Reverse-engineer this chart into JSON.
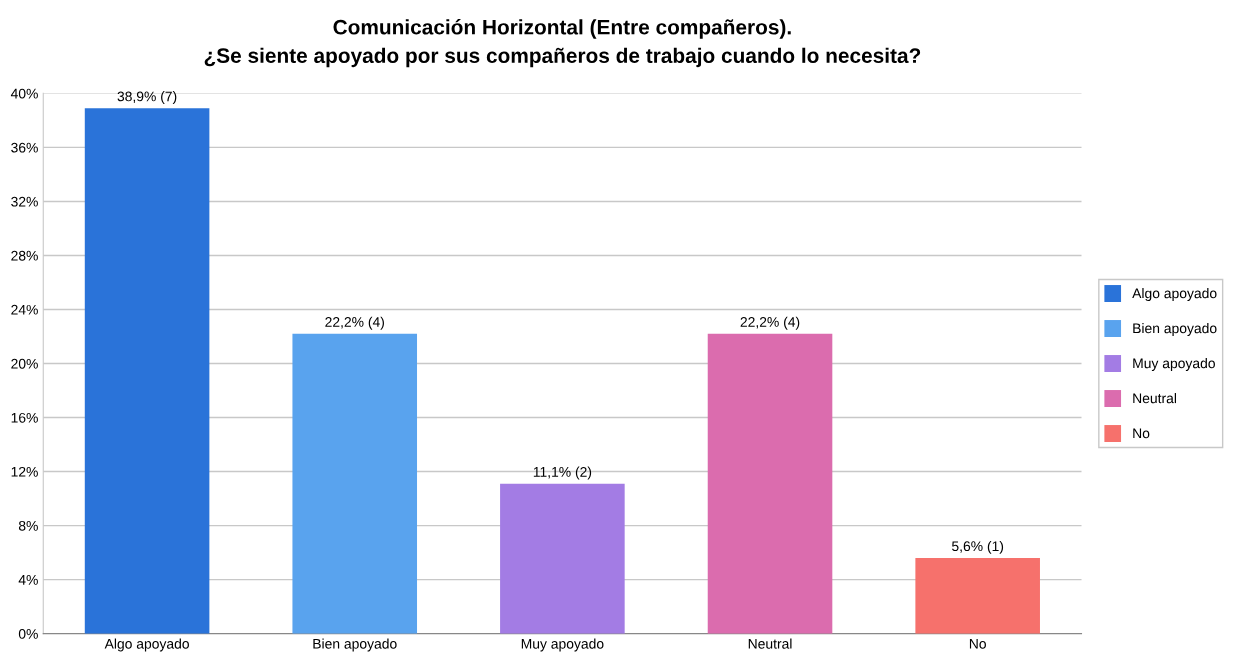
{
  "chart_data": {
    "type": "bar",
    "title": "Comunicación Horizontal (Entre compañeros).\n¿Se siente apoyado por sus compañeros de trabajo cuando lo necesita?",
    "categories": [
      "Algo apoyado",
      "Bien apoyado",
      "Muy apoyado",
      "Neutral",
      "No"
    ],
    "series": [
      {
        "name": "Algo apoyado",
        "color": "#2a73d9",
        "values": [
          38.9,
          null,
          null,
          null,
          null
        ],
        "value_labels": [
          "38,9% (7)",
          null,
          null,
          null,
          null
        ]
      },
      {
        "name": "Bien apoyado",
        "color": "#59a3ee",
        "values": [
          null,
          22.2,
          null,
          null,
          null
        ],
        "value_labels": [
          null,
          "22,2% (4)",
          null,
          null,
          null
        ]
      },
      {
        "name": "Muy apoyado",
        "color": "#a37ce4",
        "values": [
          null,
          null,
          11.1,
          null,
          null
        ],
        "value_labels": [
          null,
          null,
          "11,1% (2)",
          null,
          null
        ]
      },
      {
        "name": "Neutral",
        "color": "#db6cae",
        "values": [
          null,
          null,
          null,
          22.2,
          null
        ],
        "value_labels": [
          null,
          null,
          null,
          "22,2% (4)",
          null
        ]
      },
      {
        "name": "No",
        "color": "#f6716c",
        "values": [
          null,
          null,
          null,
          null,
          5.6
        ],
        "value_labels": [
          null,
          null,
          null,
          null,
          "5,6% (1)"
        ]
      }
    ],
    "stacked": true,
    "ylim": [
      0,
      40
    ],
    "yticks": [
      {
        "value": 0,
        "label": "0%"
      },
      {
        "value": 4,
        "label": "4%"
      },
      {
        "value": 8,
        "label": "8%"
      },
      {
        "value": 12,
        "label": "12%"
      },
      {
        "value": 16,
        "label": "16%"
      },
      {
        "value": 20,
        "label": "20%"
      },
      {
        "value": 24,
        "label": "24%"
      },
      {
        "value": 28,
        "label": "28%"
      },
      {
        "value": 32,
        "label": "32%"
      },
      {
        "value": 36,
        "label": "36%"
      },
      {
        "value": 40,
        "label": "40%"
      }
    ],
    "grid": "y",
    "legend": "right"
  }
}
